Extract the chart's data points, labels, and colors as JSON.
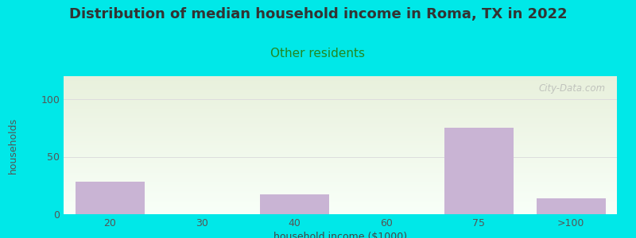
{
  "title": "Distribution of median household income in Roma, TX in 2022",
  "subtitle": "Other residents",
  "xlabel": "household income ($1000)",
  "ylabel": "households",
  "categories": [
    "20",
    "30",
    "40",
    "60",
    "75",
    ">100"
  ],
  "values": [
    28,
    0,
    17,
    0,
    75,
    14
  ],
  "bar_color": "#c9b4d4",
  "bg_outer": "#00e8e8",
  "bg_plot_top": "#e8f0dc",
  "bg_plot_bottom": "#f8fff8",
  "ylim": [
    0,
    120
  ],
  "yticks": [
    0,
    50,
    100
  ],
  "title_fontsize": 13,
  "subtitle_fontsize": 11,
  "subtitle_color": "#228822",
  "ylabel_color": "#555555",
  "axis_label_fontsize": 9,
  "tick_fontsize": 9,
  "watermark": "City-Data.com",
  "bar_width": 0.75
}
